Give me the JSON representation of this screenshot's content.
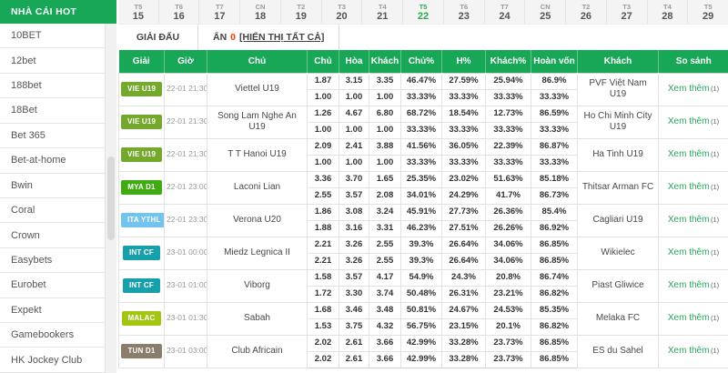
{
  "colors": {
    "accent_green": "#17a757",
    "selected_day_green": "#29a94e",
    "link_green": "#2aa35f",
    "hide_count_red": "#ff3b00"
  },
  "sidebar": {
    "title": "NHÀ CÁI HOT",
    "items": [
      "10BET",
      "12bet",
      "188bet",
      "18Bet",
      "Bet 365",
      "Bet-at-home",
      "Bwin",
      "Coral",
      "Crown",
      "Easybets",
      "Eurobet",
      "Expekt",
      "Gamebookers",
      "HK Jockey Club"
    ]
  },
  "calendar": {
    "days": [
      {
        "dow": "T5",
        "date": "15",
        "selected": false
      },
      {
        "dow": "T6",
        "date": "16",
        "selected": false
      },
      {
        "dow": "T7",
        "date": "17",
        "selected": false
      },
      {
        "dow": "CN",
        "date": "18",
        "selected": false
      },
      {
        "dow": "T2",
        "date": "19",
        "selected": false
      },
      {
        "dow": "T3",
        "date": "20",
        "selected": false
      },
      {
        "dow": "T4",
        "date": "21",
        "selected": false
      },
      {
        "dow": "T5",
        "date": "22",
        "selected": true
      },
      {
        "dow": "T6",
        "date": "23",
        "selected": false
      },
      {
        "dow": "T7",
        "date": "24",
        "selected": false
      },
      {
        "dow": "CN",
        "date": "25",
        "selected": false
      },
      {
        "dow": "T2",
        "date": "26",
        "selected": false
      },
      {
        "dow": "T3",
        "date": "27",
        "selected": false
      },
      {
        "dow": "T4",
        "date": "28",
        "selected": false
      },
      {
        "dow": "T5",
        "date": "29",
        "selected": false
      }
    ]
  },
  "toolbar": {
    "league_label": "GIẢI ĐẤU",
    "hide_label": "ẨN",
    "hide_count": "0",
    "show_all_label": "[HIỂN THỊ TẤT CẢ]"
  },
  "table": {
    "headers": [
      "Giải",
      "Giờ",
      "Chủ",
      "Chủ",
      "Hòa",
      "Khách",
      "Chủ%",
      "H%",
      "Khách%",
      "Hoàn vốn",
      "Khách",
      "So sánh"
    ],
    "compare_label": "Xem thêm",
    "compare_count": "(1)",
    "rows": [
      {
        "league": "VIE U19",
        "badge_color": "#74a92d",
        "time": "22-01 21:30",
        "home": "Viettel U19",
        "away": "PVF Việt Nam U19",
        "odds": [
          [
            "1.87",
            "3.15",
            "3.35",
            "46.47%",
            "27.59%",
            "25.94%",
            "86.9%"
          ],
          [
            "1.00",
            "1.00",
            "1.00",
            "33.33%",
            "33.33%",
            "33.33%",
            "33.33%"
          ]
        ]
      },
      {
        "league": "VIE U19",
        "badge_color": "#74a92d",
        "time": "22-01 21:30",
        "home": "Song Lam Nghe An U19",
        "away": "Ho Chi Minh City U19",
        "odds": [
          [
            "1.26",
            "4.67",
            "6.80",
            "68.72%",
            "18.54%",
            "12.73%",
            "86.59%"
          ],
          [
            "1.00",
            "1.00",
            "1.00",
            "33.33%",
            "33.33%",
            "33.33%",
            "33.33%"
          ]
        ]
      },
      {
        "league": "VIE U19",
        "badge_color": "#74a92d",
        "time": "22-01 21:30",
        "home": "T T Hanoi U19",
        "away": "Ha Tinh U19",
        "odds": [
          [
            "2.09",
            "2.41",
            "3.88",
            "41.56%",
            "36.05%",
            "22.39%",
            "86.87%"
          ],
          [
            "1.00",
            "1.00",
            "1.00",
            "33.33%",
            "33.33%",
            "33.33%",
            "33.33%"
          ]
        ]
      },
      {
        "league": "MYA D1",
        "badge_color": "#3faa12",
        "time": "22-01 23:00",
        "home": "Laconi Lian",
        "away": "Thitsar Arman FC",
        "odds": [
          [
            "3.36",
            "3.70",
            "1.65",
            "25.35%",
            "23.02%",
            "51.63%",
            "85.18%"
          ],
          [
            "2.55",
            "3.57",
            "2.08",
            "34.01%",
            "24.29%",
            "41.7%",
            "86.73%"
          ]
        ]
      },
      {
        "league": "ITA YTHL",
        "badge_color": "#72c3ee",
        "time": "22-01 23:30",
        "home": "Verona U20",
        "away": "Cagliari U19",
        "odds": [
          [
            "1.86",
            "3.08",
            "3.24",
            "45.91%",
            "27.73%",
            "26.36%",
            "85.4%"
          ],
          [
            "1.88",
            "3.16",
            "3.31",
            "46.23%",
            "27.51%",
            "26.26%",
            "86.92%"
          ]
        ]
      },
      {
        "league": "INT CF",
        "badge_color": "#179fab",
        "time": "23-01 00:00",
        "home": "Miedz Legnica II",
        "away": "Wikielec",
        "odds": [
          [
            "2.21",
            "3.26",
            "2.55",
            "39.3%",
            "26.64%",
            "34.06%",
            "86.85%"
          ],
          [
            "2.21",
            "3.26",
            "2.55",
            "39.3%",
            "26.64%",
            "34.06%",
            "86.85%"
          ]
        ]
      },
      {
        "league": "INT CF",
        "badge_color": "#179fab",
        "time": "23-01 01:00",
        "home": "Viborg",
        "away": "Piast Gliwice",
        "odds": [
          [
            "1.58",
            "3.57",
            "4.17",
            "54.9%",
            "24.3%",
            "20.8%",
            "86.74%"
          ],
          [
            "1.72",
            "3.30",
            "3.74",
            "50.48%",
            "26.31%",
            "23.21%",
            "86.82%"
          ]
        ]
      },
      {
        "league": "MALAC",
        "badge_color": "#a3c614",
        "time": "23-01 01:30",
        "home": "Sabah",
        "away": "Melaka FC",
        "odds": [
          [
            "1.68",
            "3.46",
            "3.48",
            "50.81%",
            "24.67%",
            "24.53%",
            "85.35%"
          ],
          [
            "1.53",
            "3.75",
            "4.32",
            "56.75%",
            "23.15%",
            "20.1%",
            "86.82%"
          ]
        ]
      },
      {
        "league": "TUN D1",
        "badge_color": "#8b7d6b",
        "time": "23-01 03:00",
        "home": "Club Africain",
        "away": "ES du Sahel",
        "odds": [
          [
            "2.02",
            "2.61",
            "3.66",
            "42.99%",
            "33.28%",
            "23.73%",
            "86.85%"
          ],
          [
            "2.02",
            "2.61",
            "3.66",
            "42.99%",
            "33.28%",
            "23.73%",
            "86.85%"
          ]
        ]
      }
    ]
  }
}
